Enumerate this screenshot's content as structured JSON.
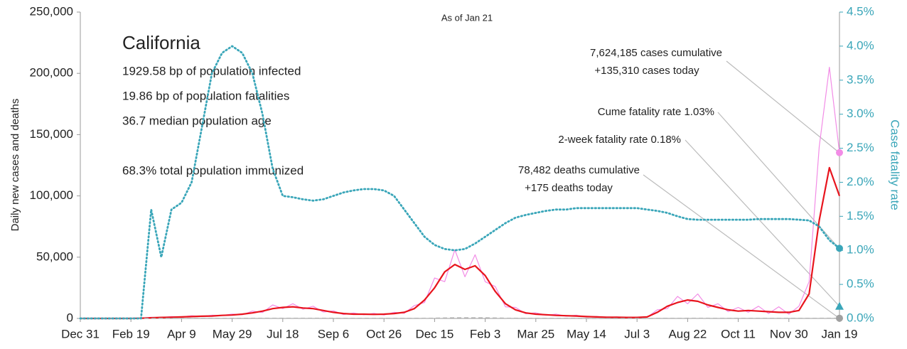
{
  "chart_data": {
    "type": "line",
    "subtitle": "As of Jan 21",
    "ylabel": "Daily new cases and deaths",
    "y2label": "Case fatality rate",
    "info": {
      "title": "California",
      "lines": [
        "1929.58 bp of population infected",
        "19.86 bp of population fatalities",
        "36.7 median population age",
        "68.3% total population immunized"
      ]
    },
    "annotations": [
      "7,624,185 cases cumulative",
      "+135,310 cases today",
      "Cume fatality rate 1.03%",
      "2-week fatality rate 0.18%",
      "78,482 deaths cumulative",
      "+175 deaths today"
    ],
    "xlim": [
      0,
      750
    ],
    "xticks": [
      {
        "value": 0,
        "label": "Dec 31"
      },
      {
        "value": 50,
        "label": "Feb 19"
      },
      {
        "value": 100,
        "label": "Apr 9"
      },
      {
        "value": 150,
        "label": "May 29"
      },
      {
        "value": 200,
        "label": "Jul 18"
      },
      {
        "value": 250,
        "label": "Sep 6"
      },
      {
        "value": 300,
        "label": "Oct 26"
      },
      {
        "value": 350,
        "label": "Dec 15"
      },
      {
        "value": 400,
        "label": "Feb 3"
      },
      {
        "value": 450,
        "label": "Mar 25"
      },
      {
        "value": 500,
        "label": "May 14"
      },
      {
        "value": 550,
        "label": "Jul 3"
      },
      {
        "value": 600,
        "label": "Aug 22"
      },
      {
        "value": 650,
        "label": "Oct 11"
      },
      {
        "value": 700,
        "label": "Nov 30"
      },
      {
        "value": 750,
        "label": "Jan 19"
      }
    ],
    "ylim": [
      0,
      250000
    ],
    "yticks": [
      0,
      {
        "value": 50000,
        "label": "50,000"
      },
      {
        "value": 100000,
        "label": "100,000"
      },
      {
        "value": 150000,
        "label": "150,000"
      },
      {
        "value": 200000,
        "label": "200,000"
      },
      {
        "value": 250000,
        "label": "250,000"
      }
    ],
    "y2lim": [
      0,
      4.5
    ],
    "y2ticks": [
      {
        "value": 0,
        "label": "0.0%"
      },
      {
        "value": 0.5,
        "label": "0.5%"
      },
      {
        "value": 1,
        "label": "1.0%"
      },
      {
        "value": 1.5,
        "label": "1.5%"
      },
      {
        "value": 2,
        "label": "2.0%"
      },
      {
        "value": 2.5,
        "label": "2.5%"
      },
      {
        "value": 3,
        "label": "3.0%"
      },
      {
        "value": 3.5,
        "label": "3.5%"
      },
      {
        "value": 4,
        "label": "4.0%"
      },
      {
        "value": 4.5,
        "label": "4.5%"
      }
    ],
    "x": [
      0,
      10,
      20,
      30,
      40,
      50,
      60,
      70,
      80,
      90,
      100,
      110,
      120,
      130,
      140,
      150,
      160,
      170,
      180,
      190,
      200,
      210,
      220,
      230,
      240,
      250,
      260,
      270,
      280,
      290,
      300,
      310,
      320,
      330,
      340,
      350,
      360,
      370,
      380,
      390,
      400,
      410,
      420,
      430,
      440,
      450,
      460,
      470,
      480,
      490,
      500,
      510,
      520,
      530,
      540,
      550,
      560,
      570,
      580,
      590,
      600,
      610,
      620,
      630,
      640,
      650,
      660,
      670,
      680,
      690,
      700,
      710,
      720,
      730,
      740,
      750
    ],
    "series": [
      {
        "color": "#f28ce6",
        "width": 1.2,
        "dash": false,
        "values": [
          0,
          0,
          0,
          0,
          0,
          0,
          300,
          900,
          600,
          1500,
          1200,
          2200,
          1600,
          2600,
          2400,
          3600,
          3000,
          6000,
          4800,
          11000,
          8000,
          12000,
          7500,
          10000,
          5200,
          6200,
          3200,
          4400,
          3000,
          4200,
          2800,
          5000,
          4200,
          10500,
          13000,
          33000,
          30000,
          56000,
          34000,
          52000,
          30000,
          26000,
          9500,
          9000,
          3800,
          4600,
          2600,
          3500,
          1800,
          2600,
          1100,
          1600,
          800,
          1200,
          600,
          1000,
          900,
          7000,
          8000,
          18000,
          12000,
          20000,
          9000,
          12000,
          5500,
          9000,
          5000,
          10000,
          4000,
          9500,
          3500,
          10000,
          30000,
          140000,
          205000,
          135310
        ]
      },
      {
        "color": "#e8141d",
        "width": 2.2,
        "dash": false,
        "values": [
          0,
          0,
          0,
          0,
          0,
          0,
          200,
          500,
          800,
          1000,
          1200,
          1500,
          1800,
          2000,
          2500,
          2800,
          3500,
          4500,
          6000,
          8000,
          9000,
          9500,
          8500,
          8000,
          6500,
          5000,
          4000,
          3500,
          3500,
          3300,
          3500,
          4000,
          5000,
          8000,
          15000,
          25000,
          38000,
          44000,
          40000,
          43000,
          35000,
          22000,
          12000,
          7000,
          4500,
          3500,
          3000,
          2500,
          2200,
          2000,
          1500,
          1200,
          1000,
          900,
          800,
          800,
          1200,
          5000,
          10000,
          13000,
          15000,
          14000,
          11000,
          9000,
          7000,
          6000,
          6500,
          6000,
          5500,
          5000,
          5000,
          6500,
          20000,
          80000,
          123000,
          100000
        ]
      },
      {
        "color": "#b0b0b0",
        "width": 1.5,
        "dash": true,
        "values": [
          0,
          0,
          0,
          0,
          0,
          0,
          0,
          10,
          30,
          50,
          60,
          70,
          80,
          80,
          70,
          70,
          70,
          90,
          100,
          120,
          140,
          140,
          130,
          120,
          110,
          100,
          80,
          60,
          50,
          50,
          40,
          40,
          40,
          60,
          120,
          200,
          350,
          500,
          550,
          550,
          500,
          350,
          200,
          120,
          80,
          60,
          50,
          40,
          30,
          30,
          20,
          20,
          20,
          20,
          20,
          20,
          20,
          30,
          50,
          80,
          100,
          110,
          100,
          80,
          60,
          50,
          40,
          40,
          40,
          40,
          40,
          40,
          60,
          120,
          170,
          175
        ]
      },
      {
        "color": "#3aa6b9",
        "width": 2.2,
        "dash": "dot",
        "axis": "y2",
        "values": [
          0,
          0,
          0,
          0,
          0,
          0,
          0,
          1.6,
          0.9,
          1.6,
          1.7,
          2.0,
          2.8,
          3.6,
          3.9,
          4.0,
          3.9,
          3.6,
          3.0,
          2.2,
          1.8,
          1.78,
          1.75,
          1.73,
          1.75,
          1.8,
          1.85,
          1.88,
          1.9,
          1.9,
          1.88,
          1.8,
          1.6,
          1.4,
          1.2,
          1.08,
          1.02,
          1.0,
          1.02,
          1.1,
          1.2,
          1.3,
          1.4,
          1.48,
          1.52,
          1.55,
          1.58,
          1.6,
          1.6,
          1.62,
          1.62,
          1.62,
          1.62,
          1.62,
          1.62,
          1.62,
          1.6,
          1.58,
          1.55,
          1.5,
          1.46,
          1.45,
          1.45,
          1.45,
          1.45,
          1.45,
          1.45,
          1.46,
          1.46,
          1.46,
          1.46,
          1.45,
          1.44,
          1.35,
          1.15,
          1.03
        ]
      }
    ],
    "markers": [
      {
        "value": 135310,
        "color": "#f28ce6",
        "shape": "circle"
      },
      {
        "value": 1.03,
        "axis": "y2",
        "color": "#3aa6b9",
        "shape": "circle"
      },
      {
        "value": 0.18,
        "axis": "y2",
        "color": "#3aa6b9",
        "shape": "triangle"
      },
      {
        "value": 175,
        "color": "#a0a0a0",
        "shape": "circle"
      }
    ]
  }
}
